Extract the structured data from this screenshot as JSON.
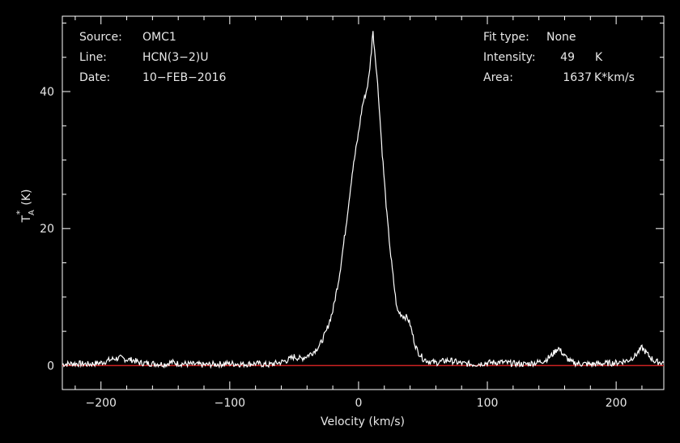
{
  "header": {
    "source_label": "Source:",
    "source_value": "OMC1",
    "line_label": "Line:",
    "line_value": "HCN(3−2)U",
    "date_label": "Date:",
    "date_value": "10−FEB−2016",
    "fit_label": "Fit type:",
    "fit_value": "None",
    "intensity_label": "Intensity:",
    "intensity_value": "49",
    "intensity_unit": "K",
    "area_label": "Area:",
    "area_value": "1637",
    "area_unit": "K*km/s"
  },
  "colors": {
    "background": "#000000",
    "spectrum": "#ffffff",
    "baseline": "#cc2222",
    "axes": "#ffffff"
  },
  "chart_data": {
    "type": "line",
    "xlabel": "Velocity (km/s)",
    "ylabel_main": "T",
    "ylabel_sup": "*",
    "ylabel_sub": "A",
    "ylabel_unit": "(K)",
    "xlim": [
      -230,
      237
    ],
    "ylim": [
      -3.5,
      51
    ],
    "xticks": [
      -200,
      -100,
      0,
      100,
      200
    ],
    "xtick_labels": [
      "−200",
      "−100",
      "0",
      "100",
      "200"
    ],
    "yticks": [
      0,
      20,
      40
    ],
    "ytick_labels": [
      "0",
      "20",
      "40"
    ],
    "baseline": 0,
    "series": [
      {
        "x": [
          -230,
          -220,
          -210,
          -200,
          -190,
          -185,
          -180,
          -175,
          -170,
          -160,
          -150,
          -145,
          -140,
          -130,
          -120,
          -110,
          -100,
          -90,
          -80,
          -70,
          -60,
          -55,
          -50,
          -45,
          -40,
          -35,
          -30,
          -25,
          -20,
          -15,
          -10,
          -5,
          0,
          3,
          6,
          8,
          10,
          11,
          12,
          14,
          16,
          18,
          20,
          22,
          25,
          28,
          30,
          33,
          35,
          38,
          40,
          42,
          44,
          46,
          48,
          50,
          55,
          60,
          70,
          80,
          90,
          100,
          110,
          120,
          130,
          140,
          145,
          150,
          155,
          160,
          165,
          170,
          180,
          190,
          200,
          210,
          215,
          220,
          225,
          230,
          237
        ],
        "y": [
          0.2,
          0.3,
          0.2,
          0.4,
          1.0,
          1.1,
          0.9,
          0.8,
          0.4,
          0.3,
          0.2,
          0.5,
          0.3,
          0.2,
          0.1,
          0.2,
          0.3,
          0.2,
          0.3,
          0.1,
          0.5,
          0.8,
          1.3,
          1.0,
          1.4,
          2.0,
          3.0,
          5.0,
          8.0,
          13.0,
          20.0,
          28.0,
          34.0,
          38.0,
          40.0,
          42.0,
          46.0,
          49.0,
          47.0,
          43.0,
          38.0,
          32.0,
          27.0,
          22.0,
          16.0,
          11.0,
          8.0,
          7.5,
          7.2,
          7.0,
          6.0,
          4.5,
          3.0,
          2.0,
          1.6,
          1.0,
          0.6,
          0.4,
          0.8,
          0.3,
          0.2,
          0.4,
          0.5,
          0.3,
          0.2,
          0.5,
          0.8,
          1.5,
          2.6,
          1.4,
          0.5,
          0.3,
          0.2,
          0.3,
          0.4,
          0.8,
          1.5,
          2.6,
          1.5,
          0.6,
          0.4
        ]
      }
    ]
  }
}
